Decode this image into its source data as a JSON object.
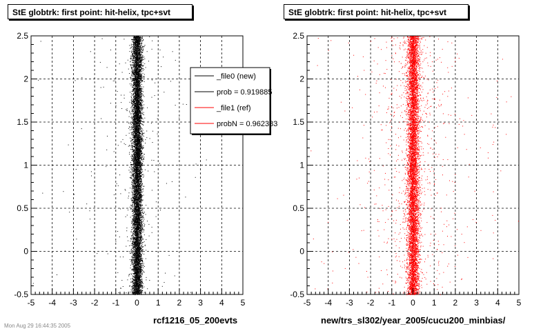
{
  "footer": "Mon Aug 29 16:44:35 2005",
  "chart_data": [
    {
      "type": "scatter",
      "title": "StE globtrk: first point: hit-helix, tpc+svt",
      "xlabel": "rcf1216_05_200evts",
      "xlim": [
        -5,
        5
      ],
      "ylim": [
        -0.5,
        2.5
      ],
      "xticks": [
        "-5",
        "-4",
        "-3",
        "-2",
        "-1",
        "0",
        "1",
        "2",
        "3",
        "4",
        "5"
      ],
      "yticks": [
        "-0.5",
        "0",
        "0.5",
        "1",
        "1.5",
        "2",
        "2.5"
      ],
      "grid": true,
      "legend_position": "top-right",
      "series": [
        {
          "name": "_file0 (new)",
          "color": "#000000",
          "distribution": {
            "x_center": 0,
            "x_width": 0.22,
            "y_range": [
              -0.5,
              2.5
            ],
            "core_points": 9000,
            "halo_points": 250
          }
        }
      ],
      "legend": [
        {
          "label": "_file0 (new)",
          "color": "#000000"
        },
        {
          "label": "prob = 0.919885",
          "color": "#000000"
        },
        {
          "label": "_file1 (ref)",
          "color": "#ff0000"
        },
        {
          "label": "probN = 0.962383",
          "color": "#ff0000"
        }
      ]
    },
    {
      "type": "scatter",
      "title": "StE globtrk: first point: hit-helix, tpc+svt",
      "xlabel": "new/trs_sl302/year_2005/cucu200_minbias/",
      "xlim": [
        -5,
        5
      ],
      "ylim": [
        -0.5,
        2.5
      ],
      "xticks": [
        "-5",
        "-4",
        "-3",
        "-2",
        "-1",
        "0",
        "1",
        "2",
        "3",
        "4",
        "5"
      ],
      "yticks": [
        "-0.5",
        "0",
        "0.5",
        "1",
        "1.5",
        "2",
        "2.5"
      ],
      "grid": true,
      "series": [
        {
          "name": "_file1 (ref)",
          "color": "#ff0000",
          "distribution": {
            "x_center": 0,
            "x_width": 0.25,
            "y_range": [
              -0.5,
              2.5
            ],
            "core_points": 7000,
            "halo_points": 900
          }
        }
      ]
    }
  ]
}
